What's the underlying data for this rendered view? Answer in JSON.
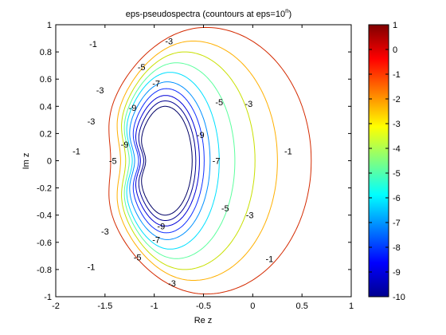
{
  "chart_data": {
    "type": "contour",
    "title": "eps-pseudospectra (countours at eps=10",
    "title_exponent": "n",
    "title_suffix": ")",
    "xlabel": "Re z",
    "ylabel": "Im z",
    "xlim": [
      -2,
      1
    ],
    "ylim": [
      -1,
      1
    ],
    "xticks": [
      -2,
      -1.5,
      -1,
      -0.5,
      0,
      0.5,
      1
    ],
    "xtick_labels": [
      "-2",
      "-1.5",
      "-1",
      "-0.5",
      "0",
      "0.5",
      "1"
    ],
    "yticks": [
      -1,
      -0.8,
      -0.6,
      -0.4,
      -0.2,
      0,
      0.2,
      0.4,
      0.6,
      0.8,
      1
    ],
    "ytick_labels": [
      "-1",
      "-0.8",
      "-0.6",
      "-0.4",
      "-0.2",
      "0",
      "0.2",
      "0.4",
      "0.6",
      "0.8",
      "1"
    ],
    "grid": false,
    "colormap": "jet",
    "colorbar": {
      "range": [
        -10,
        1
      ],
      "ticks": [
        1,
        0,
        -1,
        -2,
        -3,
        -4,
        -5,
        -6,
        -7,
        -8,
        -9,
        -10
      ],
      "tick_labels": [
        "1",
        "0",
        "-1",
        "-2",
        "-3",
        "-4",
        "-5",
        "-6",
        "-7",
        "-8",
        "-9",
        "-10"
      ]
    },
    "levels": [
      {
        "level": -1,
        "color": "#d42a00",
        "left": -1.76,
        "right": 0.38,
        "top": 0.98,
        "notch": 0.08
      },
      {
        "level": -2,
        "color": "#ffb000",
        "left": -1.63,
        "right": 0.08,
        "top": 0.88,
        "notch": 0.09
      },
      {
        "level": -3,
        "color": "#c8e000",
        "left": -1.55,
        "right": -0.12,
        "top": 0.8,
        "notch": 0.09
      },
      {
        "level": -4,
        "color": "#5cff9e",
        "left": -1.49,
        "right": -0.3,
        "top": 0.72,
        "notch": 0.09
      },
      {
        "level": -5,
        "color": "#00e0ff",
        "left": -1.44,
        "right": -0.44,
        "top": 0.65,
        "notch": 0.09
      },
      {
        "level": -6,
        "color": "#0090ff",
        "left": -1.39,
        "right": -0.52,
        "top": 0.58,
        "notch": 0.08
      },
      {
        "level": -7,
        "color": "#1030ff",
        "left": -1.34,
        "right": -0.57,
        "top": 0.53,
        "notch": 0.08
      },
      {
        "level": -8,
        "color": "#0000d8",
        "left": -1.3,
        "right": -0.61,
        "top": 0.48,
        "notch": 0.07
      },
      {
        "level": -9,
        "color": "#00008f",
        "left": -1.26,
        "right": -0.64,
        "top": 0.44,
        "notch": 0.07
      },
      {
        "level": -10,
        "color": "#000066",
        "left": -1.22,
        "right": -0.67,
        "top": 0.4,
        "notch": 0.06
      }
    ],
    "contour_labels": [
      {
        "text": "-1",
        "x": -1.62,
        "y": 0.86
      },
      {
        "text": "-3",
        "x": -0.85,
        "y": 0.88
      },
      {
        "text": "-3",
        "x": -1.55,
        "y": 0.52
      },
      {
        "text": "-3",
        "x": -1.64,
        "y": 0.29
      },
      {
        "text": "-1",
        "x": -1.79,
        "y": 0.07
      },
      {
        "text": "-5",
        "x": -1.13,
        "y": 0.69
      },
      {
        "text": "-7",
        "x": -0.98,
        "y": 0.57
      },
      {
        "text": "-9",
        "x": -1.22,
        "y": 0.39
      },
      {
        "text": "-9",
        "x": -0.53,
        "y": 0.19
      },
      {
        "text": "-9",
        "x": -1.3,
        "y": 0.12
      },
      {
        "text": "-5",
        "x": -0.34,
        "y": 0.43
      },
      {
        "text": "-3",
        "x": -0.04,
        "y": 0.42
      },
      {
        "text": "-5",
        "x": -1.42,
        "y": 0.0
      },
      {
        "text": "-7",
        "x": -0.37,
        "y": 0.0
      },
      {
        "text": "-1",
        "x": 0.36,
        "y": 0.07
      },
      {
        "text": "-5",
        "x": -0.28,
        "y": -0.35
      },
      {
        "text": "-3",
        "x": -0.03,
        "y": -0.4
      },
      {
        "text": "-9",
        "x": -0.93,
        "y": -0.48
      },
      {
        "text": "-7",
        "x": -0.98,
        "y": -0.58
      },
      {
        "text": "-3",
        "x": -1.5,
        "y": -0.52
      },
      {
        "text": "-5",
        "x": -1.17,
        "y": -0.71
      },
      {
        "text": "-1",
        "x": -1.64,
        "y": -0.78
      },
      {
        "text": "-1",
        "x": 0.17,
        "y": -0.72
      },
      {
        "text": "-3",
        "x": -0.82,
        "y": -0.9
      }
    ]
  }
}
